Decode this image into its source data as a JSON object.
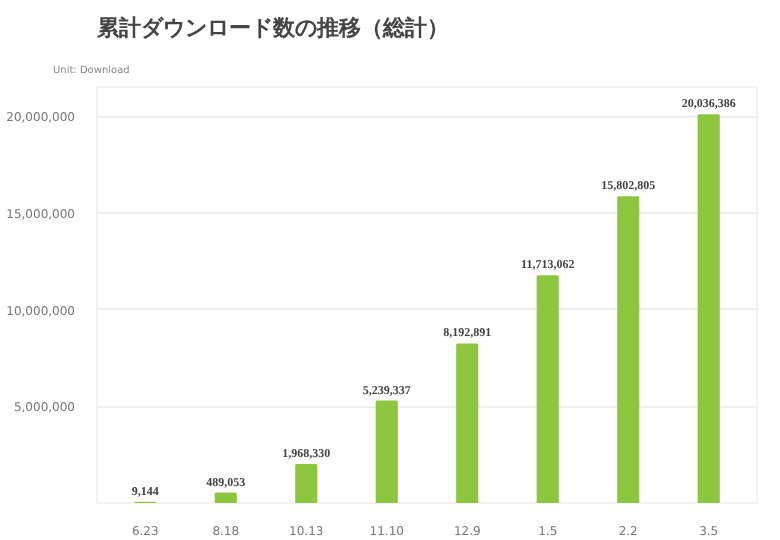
{
  "chart_data": {
    "type": "bar",
    "title": "累計ダウンロード数の推移（総計）",
    "annotations": [
      "Unit: Download"
    ],
    "categories": [
      "6.23",
      "8.18",
      "10.13",
      "11.10",
      "12.9",
      "1.5",
      "2.2",
      "3.5"
    ],
    "values": [
      9144,
      489053,
      1968330,
      5239337,
      8192891,
      11713062,
      15802805,
      20036386
    ],
    "value_labels": [
      "9,144",
      "489,053",
      "1,968,330",
      "5,239,337",
      "8,192,891",
      "11,713,062",
      "15,802,805",
      "20,036,386"
    ],
    "color": "#8dc63f",
    "ylim": [
      0,
      21500000
    ],
    "yticks": [
      {
        "value": 5000000,
        "label": "5,000,000"
      },
      {
        "value": 10000000,
        "label": "10,000,000"
      },
      {
        "value": 15000000,
        "label": "15,000,000"
      },
      {
        "value": 20000000,
        "label": "20,000,000"
      }
    ],
    "grid": "y"
  }
}
